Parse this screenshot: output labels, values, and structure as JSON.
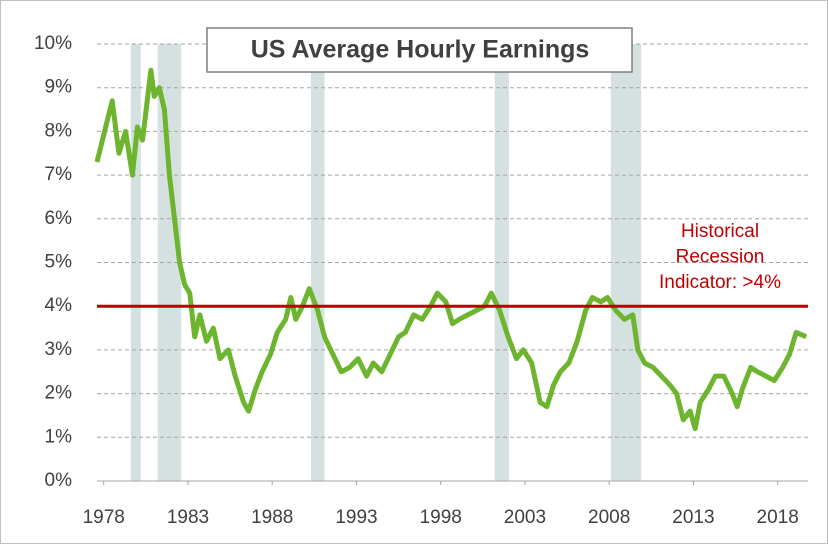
{
  "chart_data": {
    "type": "line",
    "title": "US Average Hourly Earnings",
    "xlim": [
      1977.6,
      2019.8
    ],
    "xticks": [
      1978,
      1983,
      1988,
      1993,
      1998,
      2003,
      2008,
      2013,
      2018
    ],
    "ylim": [
      0,
      10
    ],
    "yticks": [
      {
        "value": 0,
        "label": "0%"
      },
      {
        "value": 1,
        "label": "1%"
      },
      {
        "value": 2,
        "label": "2%"
      },
      {
        "value": 3,
        "label": "3%"
      },
      {
        "value": 4,
        "label": "4%"
      },
      {
        "value": 5,
        "label": "5%"
      },
      {
        "value": 6,
        "label": "6%"
      },
      {
        "value": 7,
        "label": "7%"
      },
      {
        "value": 8,
        "label": "8%"
      },
      {
        "value": 9,
        "label": "9%"
      },
      {
        "value": 10,
        "label": "10%"
      }
    ],
    "grid": true,
    "recessions": [
      {
        "start": 1979.6,
        "end": 1980.2
      },
      {
        "start": 1981.2,
        "end": 1982.6
      },
      {
        "start": 1990.3,
        "end": 1991.1
      },
      {
        "start": 2001.2,
        "end": 2002.05
      },
      {
        "start": 2008.1,
        "end": 2009.9
      }
    ],
    "recession_color": "#d5e1e1",
    "threshold": {
      "value": 4,
      "color": "#c00000"
    },
    "annotation": [
      "Historical",
      "Recession",
      "Indicator: >4%"
    ],
    "series": [
      {
        "color": "#6db52e",
        "x": [
          1977.6,
          1978.5,
          1978.9,
          1979.3,
          1979.7,
          1980.0,
          1980.3,
          1980.8,
          1981.0,
          1981.3,
          1981.6,
          1981.9,
          1982.2,
          1982.5,
          1982.8,
          1983.1,
          1983.4,
          1983.7,
          1984.1,
          1984.5,
          1984.9,
          1985.4,
          1985.8,
          1986.3,
          1986.6,
          1987.0,
          1987.4,
          1987.9,
          1988.3,
          1988.8,
          1989.1,
          1989.4,
          1989.8,
          1990.2,
          1990.7,
          1991.1,
          1991.6,
          1992.1,
          1992.6,
          1993.1,
          1993.6,
          1994.0,
          1994.5,
          1995.0,
          1995.5,
          1995.9,
          1996.4,
          1996.9,
          1997.4,
          1997.8,
          1998.3,
          1998.7,
          1999.1,
          1999.6,
          2000.1,
          2000.6,
          2001.0,
          2001.5,
          2002.0,
          2002.5,
          2002.9,
          2003.4,
          2003.9,
          2004.3,
          2004.7,
          2005.1,
          2005.6,
          2006.1,
          2006.6,
          2007.0,
          2007.5,
          2007.9,
          2008.4,
          2008.9,
          2009.4,
          2009.7,
          2010.1,
          2010.6,
          2011.1,
          2011.6,
          2012.0,
          2012.4,
          2012.8,
          2013.1,
          2013.4,
          2013.9,
          2014.3,
          2014.8,
          2015.3,
          2015.6,
          2015.9,
          2016.4,
          2016.8,
          2017.3,
          2017.8,
          2018.3,
          2018.7,
          2019.1,
          2019.7
        ],
        "values": [
          7.3,
          8.7,
          7.5,
          8.0,
          7.0,
          8.1,
          7.8,
          9.4,
          8.8,
          9.0,
          8.5,
          7.0,
          6.0,
          5.0,
          4.5,
          4.3,
          3.3,
          3.8,
          3.2,
          3.5,
          2.8,
          3.0,
          2.4,
          1.8,
          1.6,
          2.1,
          2.5,
          2.9,
          3.4,
          3.7,
          4.2,
          3.7,
          4.0,
          4.4,
          3.9,
          3.3,
          2.9,
          2.5,
          2.6,
          2.8,
          2.4,
          2.7,
          2.5,
          2.9,
          3.3,
          3.4,
          3.8,
          3.7,
          4.0,
          4.3,
          4.1,
          3.6,
          3.7,
          3.8,
          3.9,
          4.0,
          4.3,
          3.9,
          3.3,
          2.8,
          3.0,
          2.7,
          1.8,
          1.7,
          2.2,
          2.5,
          2.7,
          3.2,
          3.9,
          4.2,
          4.1,
          4.2,
          3.9,
          3.7,
          3.8,
          3.0,
          2.7,
          2.6,
          2.4,
          2.2,
          2.0,
          1.4,
          1.6,
          1.2,
          1.8,
          2.1,
          2.4,
          2.4,
          2.0,
          1.7,
          2.1,
          2.6,
          2.5,
          2.4,
          2.3,
          2.6,
          2.9,
          3.4,
          3.3
        ]
      }
    ]
  }
}
